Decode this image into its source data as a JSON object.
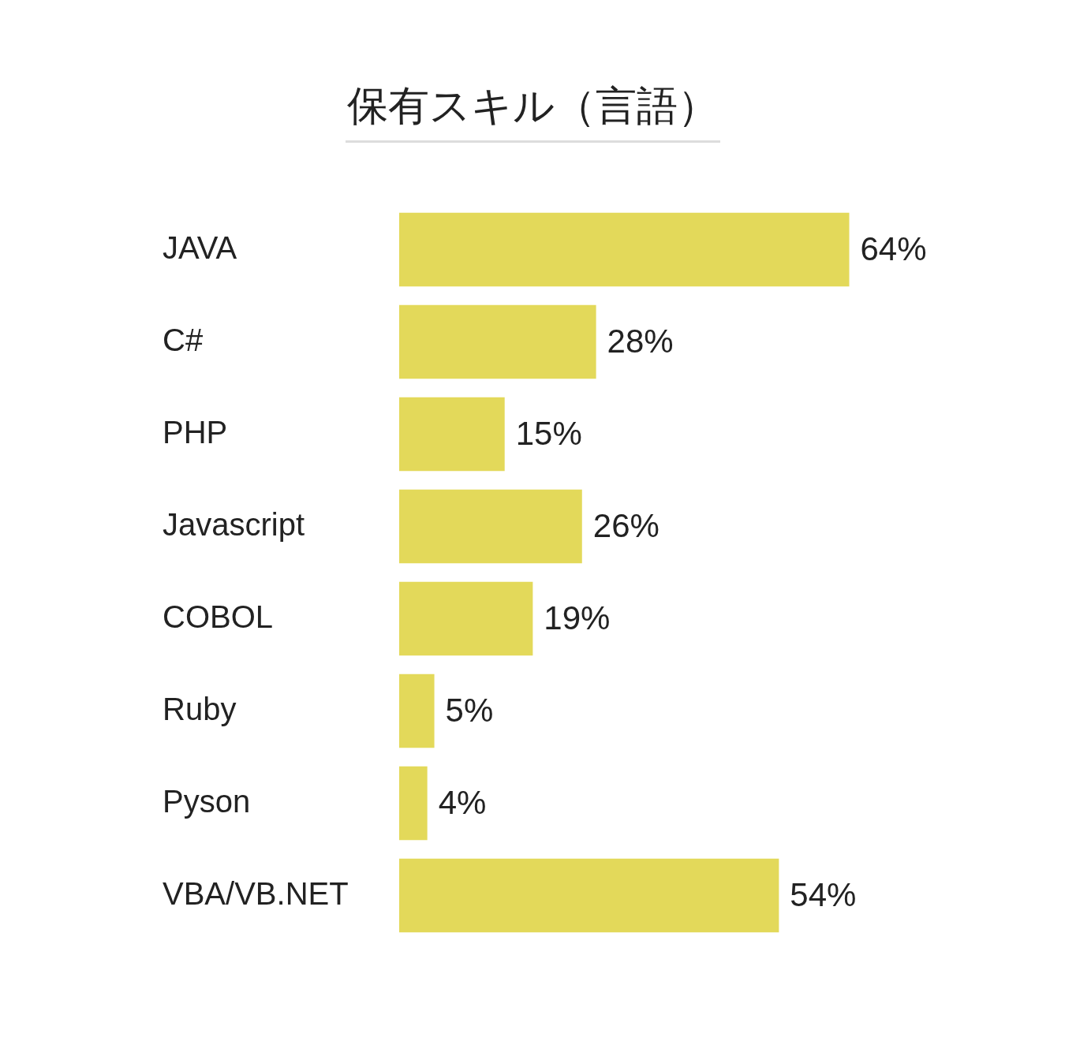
{
  "chart_data": {
    "type": "bar",
    "title": "保有スキル（言語）",
    "orientation": "horizontal",
    "categories": [
      "JAVA",
      "C#",
      "PHP",
      "Javascript",
      "COBOL",
      "Ruby",
      "Pyson",
      "VBA/VB.NET"
    ],
    "values": [
      64,
      28,
      15,
      26,
      19,
      5,
      4,
      54
    ],
    "value_labels": [
      "64%",
      "28%",
      "15%",
      "26%",
      "19%",
      "5%",
      "4%",
      "54%"
    ],
    "color": "#e3d95a"
  }
}
